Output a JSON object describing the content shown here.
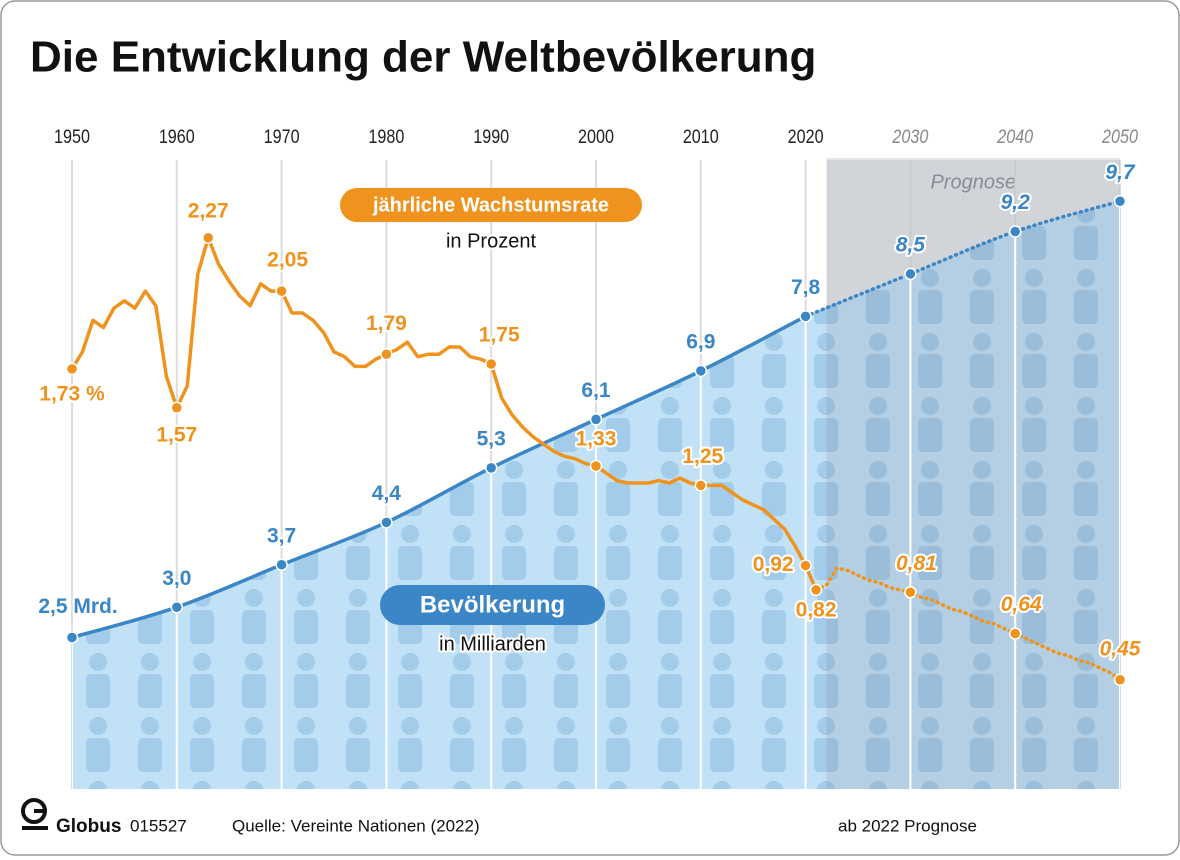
{
  "chart_data": {
    "type": "line",
    "title": "Die Entwicklung der Weltbevölkerung",
    "xlim": [
      1950,
      2050
    ],
    "xticks": [
      1950,
      1960,
      1970,
      1980,
      1990,
      2000,
      2010,
      2020,
      2030,
      2040,
      2050
    ],
    "ylim": [
      0,
      10.38
    ],
    "y2lim": [
      0,
      2.59
    ],
    "grid": true,
    "forecast_from": 2022,
    "forecast_label": "Prognose",
    "series": [
      {
        "name": "Bevölkerung",
        "unit": "in Milliarden",
        "color": "#3a86c6",
        "area": true,
        "x": [
          1950,
          1960,
          1970,
          1980,
          1990,
          2000,
          2010,
          2020,
          2030,
          2040,
          2050
        ],
        "values": [
          2.5,
          3.0,
          3.7,
          4.4,
          5.3,
          6.1,
          6.9,
          7.8,
          8.5,
          9.2,
          9.7
        ],
        "value_labels": [
          "2,5 Mrd.",
          "3,0",
          "3,7",
          "4,4",
          "5,3",
          "6,1",
          "6,9",
          "7,8",
          "8,5",
          "9,2",
          "9,7"
        ]
      },
      {
        "name": "jährliche Wachstumsrate",
        "unit": "in Prozent",
        "color": "#f0931e",
        "axis": "y2",
        "x": [
          1950,
          1951,
          1952,
          1953,
          1954,
          1955,
          1956,
          1957,
          1958,
          1959,
          1960,
          1961,
          1962,
          1963,
          1964,
          1965,
          1966,
          1967,
          1968,
          1969,
          1970,
          1971,
          1972,
          1973,
          1974,
          1975,
          1976,
          1977,
          1978,
          1979,
          1980,
          1981,
          1982,
          1983,
          1984,
          1985,
          1986,
          1987,
          1988,
          1989,
          1990,
          1991,
          1992,
          1993,
          1994,
          1995,
          1996,
          1997,
          1998,
          1999,
          2000,
          2001,
          2002,
          2003,
          2004,
          2005,
          2006,
          2007,
          2008,
          2009,
          2010,
          2011,
          2012,
          2013,
          2014,
          2015,
          2016,
          2017,
          2018,
          2019,
          2020,
          2021,
          2022,
          2023,
          2024,
          2025,
          2026,
          2027,
          2028,
          2029,
          2030,
          2031,
          2032,
          2033,
          2034,
          2035,
          2036,
          2037,
          2038,
          2039,
          2040,
          2041,
          2042,
          2043,
          2044,
          2045,
          2046,
          2047,
          2048,
          2049,
          2050
        ],
        "values": [
          1.73,
          1.8,
          1.93,
          1.9,
          1.98,
          2.01,
          1.98,
          2.05,
          1.99,
          1.7,
          1.57,
          1.66,
          2.12,
          2.27,
          2.16,
          2.09,
          2.03,
          1.99,
          2.08,
          2.05,
          2.05,
          1.96,
          1.96,
          1.93,
          1.88,
          1.8,
          1.78,
          1.74,
          1.74,
          1.77,
          1.79,
          1.81,
          1.84,
          1.78,
          1.79,
          1.79,
          1.82,
          1.82,
          1.78,
          1.77,
          1.75,
          1.61,
          1.54,
          1.49,
          1.45,
          1.42,
          1.39,
          1.37,
          1.36,
          1.34,
          1.33,
          1.3,
          1.27,
          1.26,
          1.26,
          1.26,
          1.27,
          1.26,
          1.28,
          1.26,
          1.25,
          1.25,
          1.25,
          1.22,
          1.19,
          1.17,
          1.15,
          1.11,
          1.07,
          1.0,
          0.92,
          0.82,
          0.84,
          0.91,
          0.9,
          0.88,
          0.86,
          0.85,
          0.83,
          0.82,
          0.81,
          0.79,
          0.78,
          0.76,
          0.74,
          0.73,
          0.71,
          0.69,
          0.68,
          0.66,
          0.64,
          0.62,
          0.6,
          0.58,
          0.56,
          0.55,
          0.53,
          0.52,
          0.5,
          0.48,
          0.45
        ],
        "value_labels": [
          "1,73 %",
          null,
          null,
          null,
          null,
          null,
          null,
          null,
          null,
          null,
          "1,57",
          null,
          null,
          "2,27",
          null,
          null,
          null,
          null,
          null,
          null,
          "2,05",
          null,
          null,
          null,
          null,
          null,
          null,
          null,
          null,
          null,
          "1,79",
          null,
          null,
          null,
          null,
          null,
          null,
          null,
          null,
          null,
          "1,75",
          null,
          null,
          null,
          null,
          null,
          null,
          null,
          null,
          null,
          "1,33",
          null,
          null,
          null,
          null,
          null,
          null,
          null,
          null,
          null,
          "1,25",
          null,
          null,
          null,
          null,
          null,
          null,
          null,
          null,
          null,
          "0,92",
          "0,82",
          null,
          null,
          null,
          null,
          null,
          null,
          null,
          null,
          "0,81",
          null,
          null,
          null,
          null,
          null,
          null,
          null,
          null,
          null,
          "0,64",
          null,
          null,
          null,
          null,
          null,
          null,
          null,
          null,
          null,
          "0,45"
        ]
      }
    ],
    "footer": {
      "brand": "Globus",
      "number": "015527",
      "source": "Quelle: Vereinte Nationen (2022)",
      "note": "ab 2022 Prognose"
    }
  }
}
